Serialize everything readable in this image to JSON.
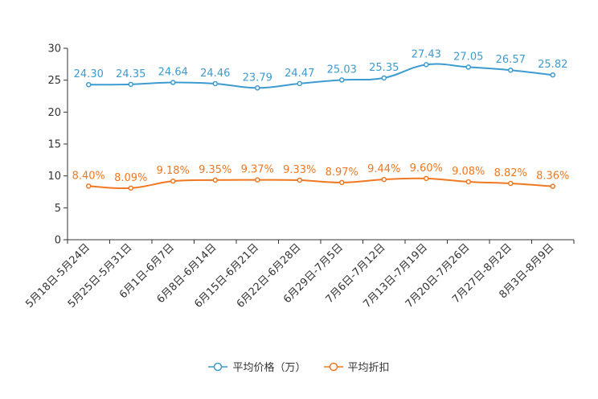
{
  "chart_data": {
    "type": "line",
    "title": "",
    "xlabel": "",
    "ylabel": "",
    "ylim": [
      0,
      30
    ],
    "yticks": [
      0,
      5,
      10,
      15,
      20,
      25,
      30
    ],
    "categories": [
      "5月18日-5月24日",
      "5月25日-5月31日",
      "6月1日-6月7日",
      "6月8日-6月14日",
      "6月15日-6月21日",
      "6月22日-6月28日",
      "6月29日-7月5日",
      "7月6日-7月12日",
      "7月13日-7月19日",
      "7月20日-7月26日",
      "7月27日-8月2日",
      "8月3日-8月9日"
    ],
    "series": [
      {
        "name": "平均价格（万）",
        "color": "#3d9bd1",
        "values": [
          24.3,
          24.35,
          24.64,
          24.46,
          23.79,
          24.47,
          25.03,
          25.35,
          27.43,
          27.05,
          26.57,
          25.82
        ],
        "labels": [
          "24.30",
          "24.35",
          "24.64",
          "24.46",
          "23.79",
          "24.47",
          "25.03",
          "25.35",
          "27.43",
          "27.05",
          "26.57",
          "25.82"
        ]
      },
      {
        "name": "平均折扣",
        "color": "#f07822",
        "values": [
          8.4,
          8.09,
          9.18,
          9.35,
          9.37,
          9.33,
          8.97,
          9.44,
          9.6,
          9.08,
          8.82,
          8.36
        ],
        "labels": [
          "8.40%",
          "8.09%",
          "9.18%",
          "9.35%",
          "9.37%",
          "9.33%",
          "8.97%",
          "9.44%",
          "9.60%",
          "9.08%",
          "8.82%",
          "8.36%"
        ]
      }
    ],
    "legend_position": "bottom"
  }
}
